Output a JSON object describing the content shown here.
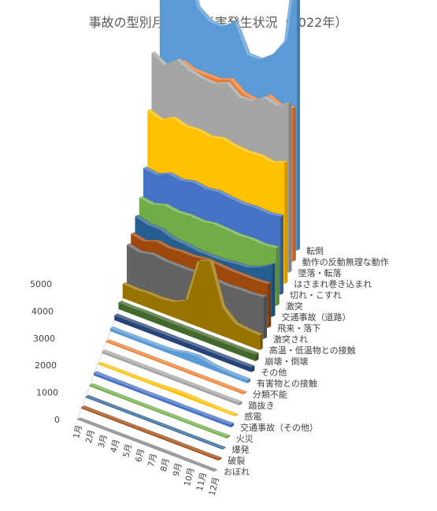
{
  "chart_data": {
    "type": "area",
    "style": "3d-area",
    "title": "事故の型別月別労働災害発生状況（2022年）",
    "categories": [
      "1月",
      "2月",
      "3月",
      "4月",
      "5月",
      "6月",
      "7月",
      "8月",
      "9月",
      "10月",
      "11月",
      "12月"
    ],
    "yticks": [
      0,
      1000,
      2000,
      3000,
      4000,
      5000
    ],
    "ylim": [
      0,
      5000
    ],
    "grid": false,
    "legend": "none",
    "series": [
      {
        "name": "おぼれ",
        "color": "#7f7f7f",
        "values": [
          2,
          2,
          2,
          2,
          3,
          3,
          4,
          5,
          3,
          2,
          2,
          2
        ]
      },
      {
        "name": "破裂",
        "color": "#9e480e",
        "values": [
          12,
          10,
          11,
          10,
          10,
          11,
          12,
          12,
          11,
          11,
          11,
          13
        ]
      },
      {
        "name": "爆発",
        "color": "#255e91",
        "values": [
          6,
          5,
          5,
          5,
          5,
          5,
          6,
          6,
          5,
          5,
          5,
          6
        ]
      },
      {
        "name": "火災",
        "color": "#70ad47",
        "values": [
          14,
          12,
          12,
          11,
          10,
          10,
          11,
          11,
          10,
          11,
          12,
          15
        ]
      },
      {
        "name": "交通事故（その他）",
        "color": "#4472c4",
        "values": [
          25,
          22,
          23,
          22,
          21,
          22,
          23,
          22,
          22,
          23,
          24,
          27
        ]
      },
      {
        "name": "感電",
        "color": "#ffc000",
        "values": [
          6,
          6,
          7,
          8,
          10,
          14,
          22,
          24,
          16,
          10,
          7,
          6
        ]
      },
      {
        "name": "踏抜き",
        "color": "#a5a5a5",
        "values": [
          20,
          20,
          22,
          21,
          22,
          21,
          22,
          22,
          21,
          21,
          21,
          22
        ]
      },
      {
        "name": "分類不能",
        "color": "#ed7d31",
        "values": [
          10,
          10,
          11,
          10,
          10,
          10,
          11,
          11,
          10,
          10,
          10,
          11
        ]
      },
      {
        "name": "有害物との接触",
        "color": "#5b9bd5",
        "values": [
          30,
          28,
          30,
          30,
          32,
          38,
          70,
          80,
          50,
          35,
          30,
          30
        ]
      },
      {
        "name": "その他",
        "color": "#264478",
        "values": [
          50,
          48,
          50,
          48,
          48,
          47,
          50,
          50,
          48,
          48,
          48,
          50
        ]
      },
      {
        "name": "崩壊・倒壊",
        "color": "#43682b",
        "values": [
          70,
          65,
          70,
          68,
          66,
          65,
          66,
          65,
          65,
          66,
          66,
          70
        ]
      },
      {
        "name": "高温・低温物との接触",
        "color": "#997300",
        "values": [
          150,
          140,
          150,
          145,
          160,
          220,
          700,
          750,
          300,
          180,
          160,
          155
        ]
      },
      {
        "name": "激突され",
        "color": "#636363",
        "values": [
          450,
          420,
          450,
          430,
          430,
          430,
          440,
          430,
          420,
          430,
          430,
          450
        ]
      },
      {
        "name": "飛来・落下",
        "color": "#9e480e",
        "values": [
          450,
          420,
          470,
          450,
          460,
          460,
          480,
          470,
          460,
          460,
          460,
          470
        ]
      },
      {
        "name": "交通事故（道路）",
        "color": "#255e91",
        "values": [
          520,
          480,
          480,
          430,
          420,
          400,
          400,
          400,
          420,
          430,
          480,
          560
        ]
      },
      {
        "name": "激突",
        "color": "#70ad47",
        "values": [
          600,
          580,
          620,
          600,
          610,
          600,
          620,
          610,
          600,
          610,
          600,
          620
        ]
      },
      {
        "name": "切れ・こすれ",
        "color": "#4472c4",
        "values": [
          800,
          780,
          840,
          820,
          850,
          830,
          850,
          830,
          820,
          830,
          820,
          840
        ]
      },
      {
        "name": "はさまれ巻き込まれ",
        "color": "#ffc000",
        "values": [
          1300,
          1250,
          1320,
          1280,
          1290,
          1270,
          1300,
          1270,
          1260,
          1270,
          1250,
          1300
        ]
      },
      {
        "name": "墜落・転落",
        "color": "#a5a5a5",
        "values": [
          1800,
          1720,
          1830,
          1760,
          1730,
          1720,
          1780,
          1680,
          1690,
          1780,
          1740,
          1820
        ]
      },
      {
        "name": "動作の反動無理な動作",
        "color": "#ed7d31",
        "values": [
          1600,
          1550,
          1700,
          1650,
          1650,
          1650,
          1700,
          1600,
          1580,
          1680,
          1620,
          1650
        ]
      },
      {
        "name": "転倒",
        "color": "#5b9bd5",
        "values": [
          5100,
          3000,
          2600,
          2200,
          2100,
          2100,
          2200,
          1900,
          1900,
          2000,
          2200,
          3300
        ]
      }
    ]
  }
}
